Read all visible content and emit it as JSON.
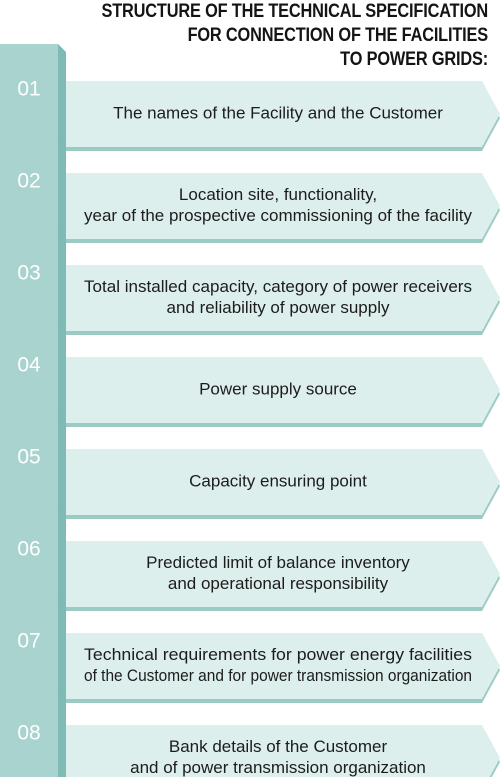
{
  "title": {
    "line1": "STRUCTURE OF THE TECHNICAL SPECIFICATION",
    "line2": "FOR CONNECTION OF THE FACILITIES",
    "line3": "TO POWER GRIDS:"
  },
  "colors": {
    "tab_fill": "#a9d3cf",
    "tab_fold": "#7fbab5",
    "bar_fill": "#dcefec",
    "bar_shadow": "#9ccbc6"
  },
  "items": [
    {
      "number": "01",
      "lines": [
        "The names of the Facility and the Customer"
      ]
    },
    {
      "number": "02",
      "lines": [
        "Location site, functionality,",
        "year of the prospective commissioning of the facility"
      ]
    },
    {
      "number": "03",
      "lines": [
        "Total installed capacity, category of power receivers",
        "and reliability of power supply"
      ]
    },
    {
      "number": "04",
      "lines": [
        "Power supply source"
      ]
    },
    {
      "number": "05",
      "lines": [
        "Capacity ensuring point"
      ]
    },
    {
      "number": "06",
      "lines": [
        "Predicted limit of balance inventory",
        "and operational responsibility"
      ]
    },
    {
      "number": "07",
      "lines": [
        "Technical requirements for power energy facilities",
        "of the Customer and for power transmission organization"
      ]
    },
    {
      "number": "08",
      "lines": [
        "Bank details of the Customer",
        "and of power transmission organization"
      ]
    }
  ]
}
